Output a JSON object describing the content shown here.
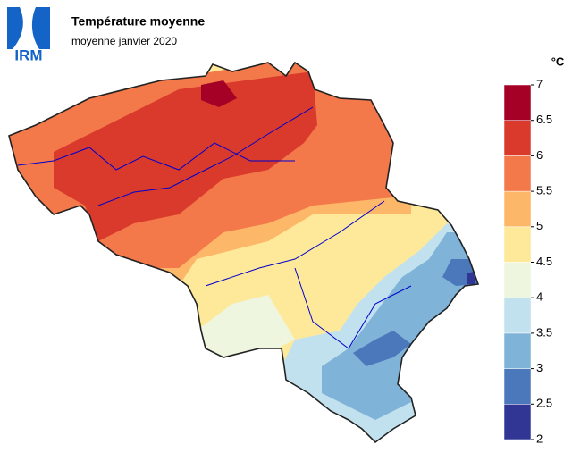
{
  "logo": "IRM",
  "title": "Température moyenne",
  "subtitle": "moyenne janvier 2020",
  "colorbar": {
    "unit": "°C",
    "ticks": [
      2,
      2.5,
      3,
      3.5,
      4,
      4.5,
      5,
      5.5,
      6,
      6.5,
      7
    ],
    "colors": [
      "#313695",
      "#4a78ba",
      "#7fb3d8",
      "#c2e1ef",
      "#eef6e0",
      "#fee99a",
      "#fdb768",
      "#f4794a",
      "#d93a2c",
      "#a50026"
    ]
  }
}
